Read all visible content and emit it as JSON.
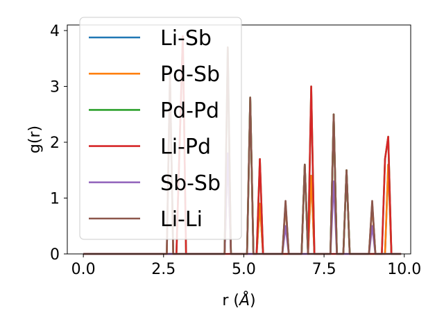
{
  "chart_data": {
    "type": "line",
    "xlabel_main": "r (",
    "xlabel_unit": "Å",
    "xlabel_close": ")",
    "ylabel": "g(r)",
    "xlim": [
      -0.5,
      10.2
    ],
    "ylim": [
      0,
      4.1
    ],
    "x_ticks": [
      0.0,
      2.5,
      5.0,
      7.5,
      10.0
    ],
    "x_tick_labels": [
      "0.0",
      "2.5",
      "5.0",
      "7.5",
      "10.0"
    ],
    "y_ticks": [
      0,
      1,
      2,
      3,
      4
    ],
    "y_tick_labels": [
      "0",
      "1",
      "2",
      "3",
      "4"
    ],
    "grid": false,
    "legend_position": "top-left",
    "series": [
      {
        "name": "Li-Sb",
        "color": "#1f77b4",
        "x": [
          0,
          2.6,
          2.7,
          2.8,
          4.4,
          4.5,
          4.6,
          5.1,
          5.2,
          5.3,
          5.4,
          5.5,
          5.6,
          6.2,
          6.3,
          6.4,
          6.8,
          6.9,
          7.0,
          7.1,
          7.2,
          7.7,
          7.8,
          7.9,
          8.1,
          8.2,
          8.3,
          8.9,
          9.0,
          9.1,
          9.4,
          9.5,
          9.6,
          9.9
        ],
        "y": [
          0,
          0,
          3.2,
          0,
          0,
          1.8,
          0,
          0,
          2.8,
          0,
          0,
          0.9,
          0,
          0,
          0.9,
          0,
          0,
          1.6,
          0,
          1.4,
          0,
          0,
          2.5,
          0,
          0,
          1.5,
          0,
          0,
          0.9,
          0,
          0,
          1.6,
          0,
          0
        ]
      },
      {
        "name": "Pd-Sb",
        "color": "#ff7f0e",
        "x": [
          0,
          2.6,
          2.7,
          2.8,
          4.4,
          4.5,
          4.6,
          5.1,
          5.2,
          5.3,
          5.4,
          5.5,
          5.6,
          6.2,
          6.3,
          6.4,
          6.8,
          6.9,
          7.0,
          7.1,
          7.2,
          7.7,
          7.8,
          7.9,
          8.1,
          8.2,
          8.3,
          8.9,
          9.0,
          9.1,
          9.4,
          9.5,
          9.6,
          9.9
        ],
        "y": [
          0,
          0,
          3.2,
          0,
          0,
          1.8,
          0,
          0,
          2.8,
          0,
          0,
          0.9,
          0,
          0,
          0.9,
          0,
          0,
          1.6,
          0,
          1.4,
          0,
          0,
          2.5,
          0,
          0,
          1.5,
          0,
          0,
          0.9,
          0,
          0,
          1.6,
          0,
          0
        ]
      },
      {
        "name": "Pd-Pd",
        "color": "#2ca02c",
        "x": [
          0,
          2.9,
          3.1,
          3.2,
          4.4,
          4.5,
          4.6,
          5.1,
          5.2,
          5.3,
          5.4,
          5.5,
          5.6,
          6.8,
          6.9,
          7.0,
          7.1,
          7.2,
          7.7,
          7.8,
          7.9,
          8.1,
          8.2,
          8.3,
          9.3,
          9.4,
          9.5,
          9.6,
          9.9
        ],
        "y": [
          0,
          0,
          3.9,
          0,
          0,
          3.7,
          0,
          0,
          2.8,
          0,
          0,
          1.7,
          0,
          0,
          1.6,
          0,
          3.0,
          0,
          0,
          2.5,
          0,
          0,
          1.5,
          0,
          0,
          1.7,
          2.1,
          0,
          0
        ]
      },
      {
        "name": "Li-Pd",
        "color": "#d62728",
        "x": [
          0,
          2.9,
          3.1,
          3.2,
          5.3,
          5.4,
          5.5,
          5.6,
          6.9,
          7.0,
          7.1,
          7.2,
          9.3,
          9.4,
          9.5,
          9.6,
          9.9
        ],
        "y": [
          0,
          0,
          3.9,
          0,
          0,
          0,
          1.7,
          0,
          0,
          0,
          3.0,
          0,
          0,
          1.7,
          2.1,
          0,
          0
        ]
      },
      {
        "name": "Sb-Sb",
        "color": "#9467bd",
        "x": [
          0,
          4.4,
          4.5,
          4.6,
          6.2,
          6.3,
          6.4,
          7.7,
          7.8,
          7.9,
          8.9,
          9.0,
          9.1,
          9.9
        ],
        "y": [
          0,
          0,
          1.8,
          0,
          0,
          0.5,
          0,
          0,
          1.3,
          0,
          0,
          0.5,
          0,
          0
        ]
      },
      {
        "name": "Li-Li",
        "color": "#8c564b",
        "x": [
          0,
          2.6,
          2.7,
          2.8,
          4.4,
          4.5,
          4.6,
          5.1,
          5.2,
          5.3,
          6.2,
          6.3,
          6.4,
          6.8,
          6.9,
          7.0,
          7.7,
          7.8,
          7.9,
          8.1,
          8.2,
          8.3,
          8.9,
          9.0,
          9.1,
          9.9
        ],
        "y": [
          0,
          0,
          3.2,
          0,
          0,
          3.7,
          0,
          0,
          2.8,
          0,
          0,
          0.95,
          0,
          0,
          1.6,
          0,
          0,
          2.5,
          0,
          0,
          1.5,
          0,
          0,
          0.95,
          0,
          0
        ]
      }
    ]
  }
}
